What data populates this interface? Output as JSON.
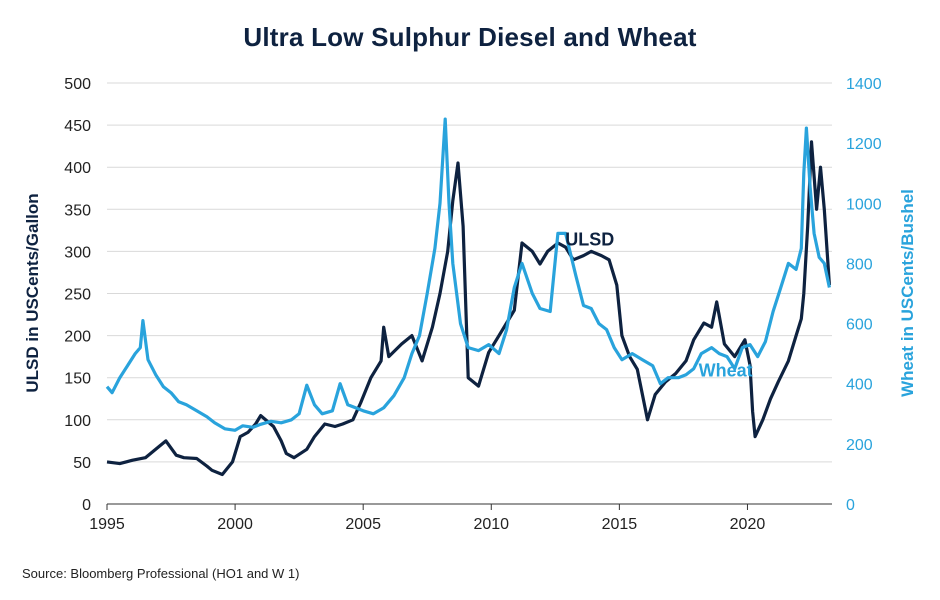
{
  "title": "Ultra Low Sulphur Diesel and Wheat",
  "source": "Source: Bloomberg Professional (HO1 and W 1)",
  "colors": {
    "ulsd": "#0e2240",
    "wheat": "#29a3dc",
    "grid": "#d9d9d9",
    "axis_text": "#222222"
  },
  "chart_data": {
    "type": "line",
    "title": "Ultra Low Sulphur Diesel and Wheat",
    "xlabel": "",
    "ylabel": "ULSD in USCents/Gallon",
    "y2label": "Wheat in USCents/Bushel",
    "xlim": [
      1995,
      2023.3
    ],
    "ylim": [
      0,
      500
    ],
    "y2lim": [
      0,
      1400
    ],
    "x_ticks": [
      "1995",
      "2000",
      "2005",
      "2010",
      "2015",
      "2020"
    ],
    "y_ticks": [
      "0",
      "50",
      "100",
      "150",
      "200",
      "250",
      "300",
      "350",
      "400",
      "450",
      "500"
    ],
    "y2_ticks": [
      "0",
      "200",
      "400",
      "600",
      "800",
      "1000",
      "1200",
      "1400"
    ],
    "grid": "horizontal",
    "annotations": [
      {
        "text": "ULSD",
        "series": "ULSD",
        "x": 2014.8,
        "y": 307
      },
      {
        "text": "Wheat",
        "series": "Wheat",
        "x": 2020.2,
        "y": 424
      }
    ],
    "series": [
      {
        "name": "ULSD",
        "axis": "left",
        "x": [
          1995.0,
          1995.5,
          1996.0,
          1996.5,
          1996.9,
          1997.3,
          1997.7,
          1998.0,
          1998.5,
          1998.9,
          1999.1,
          1999.5,
          1999.9,
          2000.2,
          2000.5,
          2000.8,
          2001.0,
          2001.5,
          2001.8,
          2002.0,
          2002.3,
          2002.8,
          2003.1,
          2003.5,
          2003.9,
          2004.2,
          2004.6,
          2004.9,
          2005.3,
          2005.7,
          2005.8,
          2006.0,
          2006.5,
          2006.9,
          2007.3,
          2007.7,
          2008.0,
          2008.3,
          2008.5,
          2008.7,
          2008.9,
          2009.1,
          2009.5,
          2009.9,
          2010.3,
          2010.6,
          2010.9,
          2011.2,
          2011.6,
          2011.9,
          2012.2,
          2012.6,
          2012.9,
          2013.2,
          2013.6,
          2013.9,
          2014.3,
          2014.6,
          2014.9,
          2015.1,
          2015.4,
          2015.7,
          2015.9,
          2016.1,
          2016.4,
          2016.8,
          2017.2,
          2017.6,
          2017.9,
          2018.3,
          2018.6,
          2018.8,
          2019.1,
          2019.5,
          2019.9,
          2020.1,
          2020.2,
          2020.3,
          2020.6,
          2020.9,
          2021.2,
          2021.6,
          2021.9,
          2022.1,
          2022.2,
          2022.35,
          2022.5,
          2022.7,
          2022.85,
          2023.0,
          2023.2
        ],
        "values": [
          50,
          48,
          52,
          55,
          65,
          75,
          58,
          55,
          54,
          45,
          40,
          35,
          50,
          80,
          85,
          95,
          105,
          92,
          75,
          60,
          55,
          65,
          80,
          95,
          92,
          95,
          100,
          120,
          150,
          170,
          210,
          175,
          190,
          200,
          170,
          210,
          250,
          300,
          360,
          405,
          330,
          150,
          140,
          180,
          200,
          215,
          230,
          310,
          300,
          285,
          300,
          310,
          305,
          290,
          295,
          300,
          295,
          290,
          260,
          200,
          175,
          160,
          130,
          100,
          130,
          145,
          155,
          170,
          195,
          215,
          210,
          240,
          190,
          175,
          195,
          165,
          110,
          80,
          100,
          125,
          145,
          170,
          200,
          220,
          250,
          330,
          430,
          350,
          400,
          350,
          260
        ]
      },
      {
        "name": "Wheat",
        "axis": "right",
        "x": [
          1995.0,
          1995.2,
          1995.5,
          1995.8,
          1996.1,
          1996.3,
          1996.4,
          1996.6,
          1996.9,
          1997.2,
          1997.5,
          1997.8,
          1998.1,
          1998.5,
          1998.9,
          1999.2,
          1999.6,
          2000.0,
          2000.3,
          2000.7,
          2001.0,
          2001.4,
          2001.8,
          2002.2,
          2002.5,
          2002.8,
          2003.1,
          2003.4,
          2003.8,
          2004.1,
          2004.4,
          2004.7,
          2005.0,
          2005.4,
          2005.8,
          2006.2,
          2006.6,
          2006.9,
          2007.2,
          2007.5,
          2007.8,
          2008.0,
          2008.2,
          2008.35,
          2008.5,
          2008.8,
          2009.1,
          2009.5,
          2009.9,
          2010.3,
          2010.6,
          2010.9,
          2011.2,
          2011.6,
          2011.9,
          2012.3,
          2012.6,
          2012.9,
          2013.3,
          2013.6,
          2013.9,
          2014.2,
          2014.5,
          2014.8,
          2015.1,
          2015.5,
          2015.9,
          2016.3,
          2016.6,
          2016.9,
          2017.3,
          2017.6,
          2017.9,
          2018.2,
          2018.6,
          2018.9,
          2019.2,
          2019.5,
          2019.8,
          2020.1,
          2020.4,
          2020.7,
          2021.0,
          2021.3,
          2021.6,
          2021.9,
          2022.1,
          2022.2,
          2022.3,
          2022.45,
          2022.6,
          2022.8,
          2023.0,
          2023.2
        ],
        "values": [
          390,
          370,
          420,
          460,
          500,
          520,
          610,
          480,
          430,
          390,
          370,
          340,
          330,
          310,
          290,
          270,
          250,
          245,
          260,
          255,
          265,
          275,
          270,
          280,
          300,
          395,
          330,
          300,
          310,
          400,
          330,
          320,
          310,
          300,
          320,
          360,
          420,
          500,
          560,
          700,
          850,
          1000,
          1280,
          1000,
          800,
          600,
          520,
          510,
          530,
          500,
          580,
          720,
          800,
          700,
          650,
          640,
          900,
          900,
          760,
          660,
          650,
          600,
          580,
          520,
          480,
          500,
          480,
          460,
          400,
          420,
          420,
          430,
          450,
          500,
          520,
          500,
          490,
          450,
          520,
          530,
          490,
          540,
          640,
          720,
          800,
          780,
          850,
          1100,
          1250,
          1050,
          900,
          820,
          800,
          720
        ]
      }
    ]
  }
}
